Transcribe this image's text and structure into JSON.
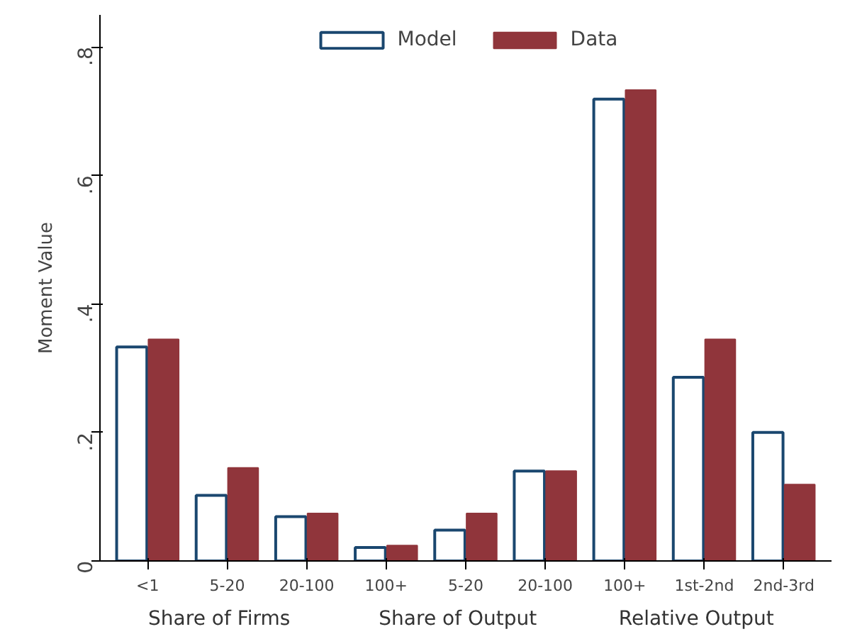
{
  "chart_data": {
    "type": "bar",
    "ylabel": "Moment Value",
    "categories": [
      "<1",
      "5-20",
      "20-100",
      "100+",
      "5-20",
      "20-100",
      "100+",
      "1st-2nd",
      "2nd-3rd"
    ],
    "series": [
      {
        "name": "Model",
        "color": "#1a476f",
        "values": [
          0.333,
          0.102,
          0.069,
          0.021,
          0.048,
          0.14,
          0.719,
          0.286,
          0.2
        ]
      },
      {
        "name": "Data",
        "color": "#90353b",
        "values": [
          0.345,
          0.145,
          0.074,
          0.024,
          0.074,
          0.14,
          0.733,
          0.345,
          0.119
        ]
      }
    ],
    "ylim": [
      0,
      0.85
    ],
    "yticks": [
      0,
      {
        "value": 0.2,
        "label": ".2"
      },
      {
        "value": 0.4,
        "label": ".4"
      },
      {
        "value": 0.6,
        "label": ".6"
      },
      {
        "value": 0.8,
        "label": ".8"
      }
    ],
    "annotations": [
      "Share of Firms",
      "Share of Output",
      "Relative Output"
    ],
    "grid": false,
    "legend": "top"
  }
}
